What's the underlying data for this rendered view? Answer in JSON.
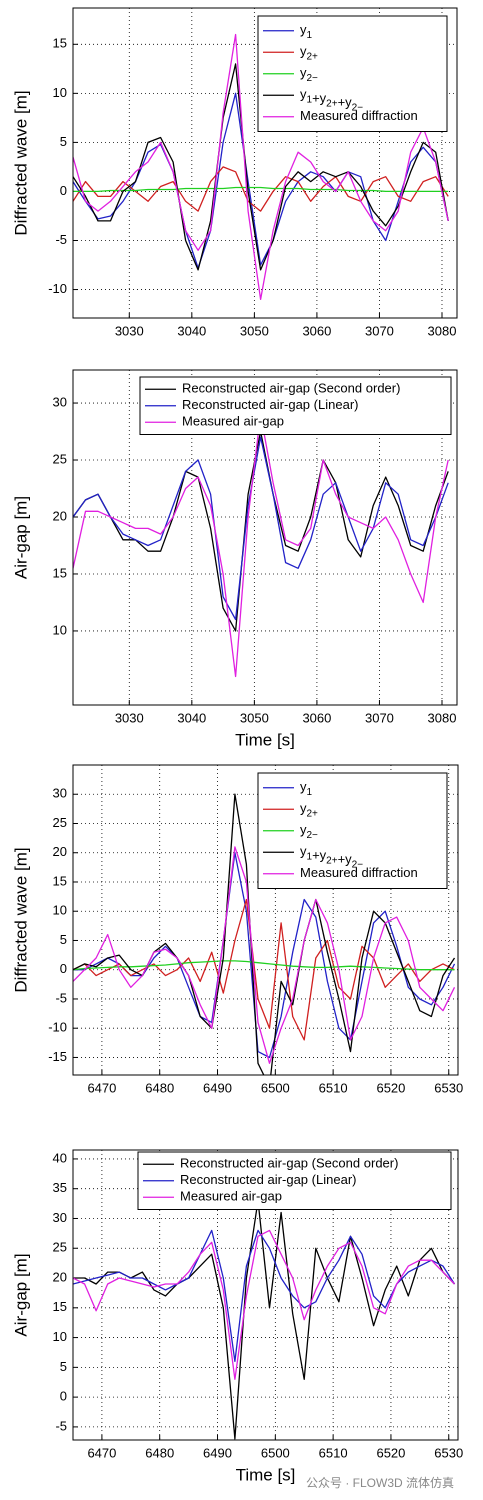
{
  "chart_data": [
    {
      "type": "line",
      "ylabel": "Diffracted wave [m]",
      "grid": true,
      "legend": "upper right",
      "x": [
        3021,
        3023,
        3025,
        3027,
        3029,
        3031,
        3033,
        3035,
        3037,
        3039,
        3041,
        3043,
        3045,
        3047,
        3049,
        3051,
        3053,
        3055,
        3057,
        3059,
        3061,
        3063,
        3065,
        3067,
        3069,
        3071,
        3073,
        3075,
        3077,
        3079,
        3081
      ],
      "xlim": [
        3021,
        3082.4
      ],
      "xticks": [
        3030,
        3040,
        3050,
        3060,
        3070,
        3080
      ],
      "ylim": [
        -12.9,
        18.7
      ],
      "yticks": [
        -10,
        -5,
        0,
        5,
        10,
        15
      ],
      "series": [
        {
          "name": "y1",
          "color": "#2222c8",
          "values": [
            1,
            -1,
            -2.8,
            -2.5,
            -1,
            1,
            4,
            4.8,
            2,
            -4,
            -7.8,
            -4,
            5,
            10,
            1,
            -7.5,
            -5,
            -1,
            1,
            2,
            1.5,
            0,
            2,
            1.5,
            -3,
            -5,
            -1,
            3,
            4.5,
            3,
            -3
          ]
        },
        {
          "name": "y2+",
          "color": "#d02020",
          "values": [
            -1,
            1,
            -0.5,
            -0.5,
            1,
            0,
            -1,
            0.5,
            1,
            -1,
            -2,
            1,
            2.5,
            2,
            -1,
            -2,
            0,
            1.5,
            1,
            -1,
            0.5,
            1.5,
            -0.5,
            -1,
            1,
            1.5,
            -0.5,
            -1,
            1,
            1.5,
            -0.5
          ]
        },
        {
          "name": "y2−",
          "color": "#20d020",
          "values": [
            0,
            0,
            0,
            0.1,
            0.1,
            0.1,
            0.2,
            0.2,
            0.2,
            0.3,
            0.3,
            0.3,
            0.3,
            0.4,
            0.4,
            0.4,
            0.3,
            0.3,
            0.3,
            0.2,
            0.2,
            0.2,
            0.1,
            0.1,
            0.1,
            0,
            0,
            0,
            0,
            0,
            0
          ]
        },
        {
          "name": "y1+y2++y2−",
          "color": "#000000",
          "values": [
            1.5,
            -0.5,
            -3,
            -3,
            0,
            1,
            5,
            5.5,
            3,
            -5,
            -8,
            -3,
            7.5,
            13,
            0,
            -8,
            -5,
            0.5,
            2,
            1,
            2,
            1.5,
            2,
            0.5,
            -2,
            -3.5,
            -1.5,
            2,
            5,
            4,
            -3
          ]
        },
        {
          "name": "Measured diffraction",
          "color": "#e020e0",
          "values": [
            3.5,
            -1,
            -2,
            -1,
            0.5,
            2,
            3,
            5,
            2,
            -4,
            -6,
            -4,
            8,
            16,
            -2,
            -11,
            -4,
            1,
            4,
            3,
            1,
            0,
            2,
            -1,
            -3,
            -4,
            -2,
            4,
            6.5,
            3,
            -3
          ]
        }
      ]
    },
    {
      "type": "line",
      "ylabel": "Air-gap [m]",
      "xlabel": "Time [s]",
      "grid": true,
      "legend": "upper right",
      "x": [
        3021,
        3023,
        3025,
        3027,
        3029,
        3031,
        3033,
        3035,
        3037,
        3039,
        3041,
        3043,
        3045,
        3047,
        3049,
        3051,
        3053,
        3055,
        3057,
        3059,
        3061,
        3063,
        3065,
        3067,
        3069,
        3071,
        3073,
        3075,
        3077,
        3079,
        3081
      ],
      "xlim": [
        3021,
        3082.4
      ],
      "xticks": [
        3030,
        3040,
        3050,
        3060,
        3070,
        3080
      ],
      "ylim": [
        3.5,
        32.9
      ],
      "yticks": [
        10,
        15,
        20,
        25,
        30
      ],
      "series": [
        {
          "name": "Reconstructed air-gap (Second order)",
          "color": "#000000",
          "values": [
            20,
            21.5,
            22,
            20,
            18,
            18,
            17,
            17,
            20,
            24,
            23.5,
            19,
            12,
            10,
            22,
            27.5,
            22,
            17.5,
            17,
            20,
            25,
            23,
            18,
            16.5,
            21,
            23.5,
            21,
            17.5,
            17,
            21,
            24
          ]
        },
        {
          "name": "Reconstructed air-gap (Linear)",
          "color": "#2222c8",
          "values": [
            20,
            21.5,
            22,
            20,
            18.5,
            18,
            17.5,
            18,
            21,
            24,
            25,
            22,
            13,
            11,
            21,
            27,
            22,
            16,
            15.5,
            18,
            22,
            23,
            20,
            17,
            19,
            23,
            22,
            18,
            17.5,
            20,
            23
          ]
        },
        {
          "name": "Measured air-gap",
          "color": "#e020e0",
          "values": [
            15.5,
            20.5,
            20.5,
            20,
            19.5,
            19,
            19,
            18.5,
            20,
            22.5,
            23.5,
            21,
            15,
            6,
            20,
            29,
            23,
            18,
            17.5,
            19,
            25,
            22,
            20,
            19.5,
            19,
            20,
            18,
            15,
            12.5,
            20,
            25
          ]
        }
      ]
    },
    {
      "type": "line",
      "ylabel": "Diffracted wave [m]",
      "grid": true,
      "legend": "upper right",
      "x": [
        6465,
        6467,
        6469,
        6471,
        6473,
        6475,
        6477,
        6479,
        6481,
        6483,
        6485,
        6487,
        6489,
        6491,
        6493,
        6495,
        6497,
        6499,
        6501,
        6503,
        6505,
        6507,
        6509,
        6511,
        6513,
        6515,
        6517,
        6519,
        6521,
        6523,
        6525,
        6527,
        6529,
        6531
      ],
      "xlim": [
        6465,
        6531.6
      ],
      "xticks": [
        6470,
        6480,
        6490,
        6500,
        6510,
        6520,
        6530
      ],
      "ylim": [
        -18,
        35
      ],
      "yticks": [
        -15,
        -10,
        -5,
        0,
        5,
        10,
        15,
        20,
        25,
        30
      ],
      "series": [
        {
          "name": "y1",
          "color": "#2222c8",
          "values": [
            0,
            0,
            1,
            2,
            1,
            -1,
            -1,
            2,
            4,
            2,
            -3,
            -8,
            -9,
            5,
            20,
            10,
            -14,
            -15,
            -8,
            3,
            12,
            9,
            -2,
            -10,
            -12,
            -2,
            8,
            10,
            4,
            -3,
            -5,
            -6,
            -3,
            1
          ]
        },
        {
          "name": "y2+",
          "color": "#d02020",
          "values": [
            0,
            1,
            -1,
            0,
            1,
            -1,
            0,
            1,
            -1,
            0,
            2,
            -2,
            3,
            -4,
            5,
            12,
            -5,
            -10,
            8,
            -8,
            -12,
            2,
            5,
            -3,
            -5,
            4,
            2,
            -3,
            -1,
            1,
            -2,
            0,
            1,
            0
          ]
        },
        {
          "name": "y2−",
          "color": "#20d020",
          "values": [
            0,
            0.2,
            0.3,
            0.4,
            0.5,
            0.5,
            0.6,
            0.7,
            0.8,
            1,
            1.2,
            1.3,
            1.4,
            1.5,
            1.5,
            1.4,
            1.2,
            1,
            0.8,
            0.6,
            0.5,
            0.4,
            0.4,
            0.5,
            0.6,
            0.5,
            0.4,
            0.3,
            0.2,
            0.1,
            0,
            0,
            0,
            0
          ]
        },
        {
          "name": "y1+y2++y2−",
          "color": "#000000",
          "values": [
            0,
            1,
            0.5,
            2,
            2.5,
            0,
            -1,
            3,
            4.5,
            2,
            -1,
            -8,
            -10,
            2,
            30,
            18,
            -16,
            -20,
            -2,
            -6,
            5,
            12,
            3,
            -5,
            -14,
            2,
            10,
            8,
            3,
            -2,
            -7,
            -8,
            -1,
            2
          ]
        },
        {
          "name": "Measured diffraction",
          "color": "#e020e0",
          "values": [
            -2,
            0,
            2,
            6,
            0,
            -3,
            -1,
            3,
            3.5,
            2,
            -1,
            -6,
            -10,
            5,
            21,
            15,
            -9,
            -16,
            -10,
            -5,
            5,
            12,
            8,
            0,
            -12,
            -8,
            2,
            8,
            9,
            5,
            -3,
            -5,
            -7,
            -3
          ]
        }
      ]
    },
    {
      "type": "line",
      "ylabel": "Air-gap [m]",
      "xlabel": "Time [s]",
      "grid": true,
      "legend": "upper right",
      "x": [
        6465,
        6467,
        6469,
        6471,
        6473,
        6475,
        6477,
        6479,
        6481,
        6483,
        6485,
        6487,
        6489,
        6491,
        6493,
        6495,
        6497,
        6499,
        6501,
        6503,
        6505,
        6507,
        6509,
        6511,
        6513,
        6515,
        6517,
        6519,
        6521,
        6523,
        6525,
        6527,
        6529,
        6531
      ],
      "xlim": [
        6465,
        6531.6
      ],
      "xticks": [
        6470,
        6480,
        6490,
        6500,
        6510,
        6520,
        6530
      ],
      "ylim": [
        -7.2,
        41.5
      ],
      "yticks": [
        -5,
        0,
        5,
        10,
        15,
        20,
        25,
        30,
        35,
        40
      ],
      "series": [
        {
          "name": "Reconstructed air-gap (Second order)",
          "color": "#000000",
          "values": [
            20,
            20,
            19,
            21,
            21,
            20,
            21,
            18,
            17,
            19,
            20,
            22,
            24,
            15,
            -7,
            20,
            33,
            15,
            31,
            14,
            3,
            25,
            20,
            16,
            27,
            20,
            12,
            18,
            22,
            17,
            23,
            25,
            21,
            19
          ]
        },
        {
          "name": "Reconstructed air-gap (Linear)",
          "color": "#2222c8",
          "values": [
            19,
            19.5,
            20,
            20.5,
            21,
            20,
            20,
            19,
            18,
            19,
            20,
            24,
            28,
            20,
            6,
            22,
            28,
            25,
            20,
            17,
            15,
            16,
            20,
            23,
            27,
            24,
            17,
            15,
            19,
            21,
            22,
            23,
            22,
            19
          ]
        },
        {
          "name": "Measured air-gap",
          "color": "#e020e0",
          "values": [
            20,
            19,
            14.5,
            19,
            20,
            19.5,
            19,
            18.5,
            19,
            19,
            21,
            24,
            26,
            18,
            3,
            17,
            27,
            28,
            24,
            20,
            13,
            18,
            22,
            25,
            26,
            22,
            15,
            14,
            19,
            22,
            23,
            23,
            21,
            19
          ]
        }
      ]
    }
  ],
  "watermark": "公众号 · FLOW3D 流体仿真"
}
